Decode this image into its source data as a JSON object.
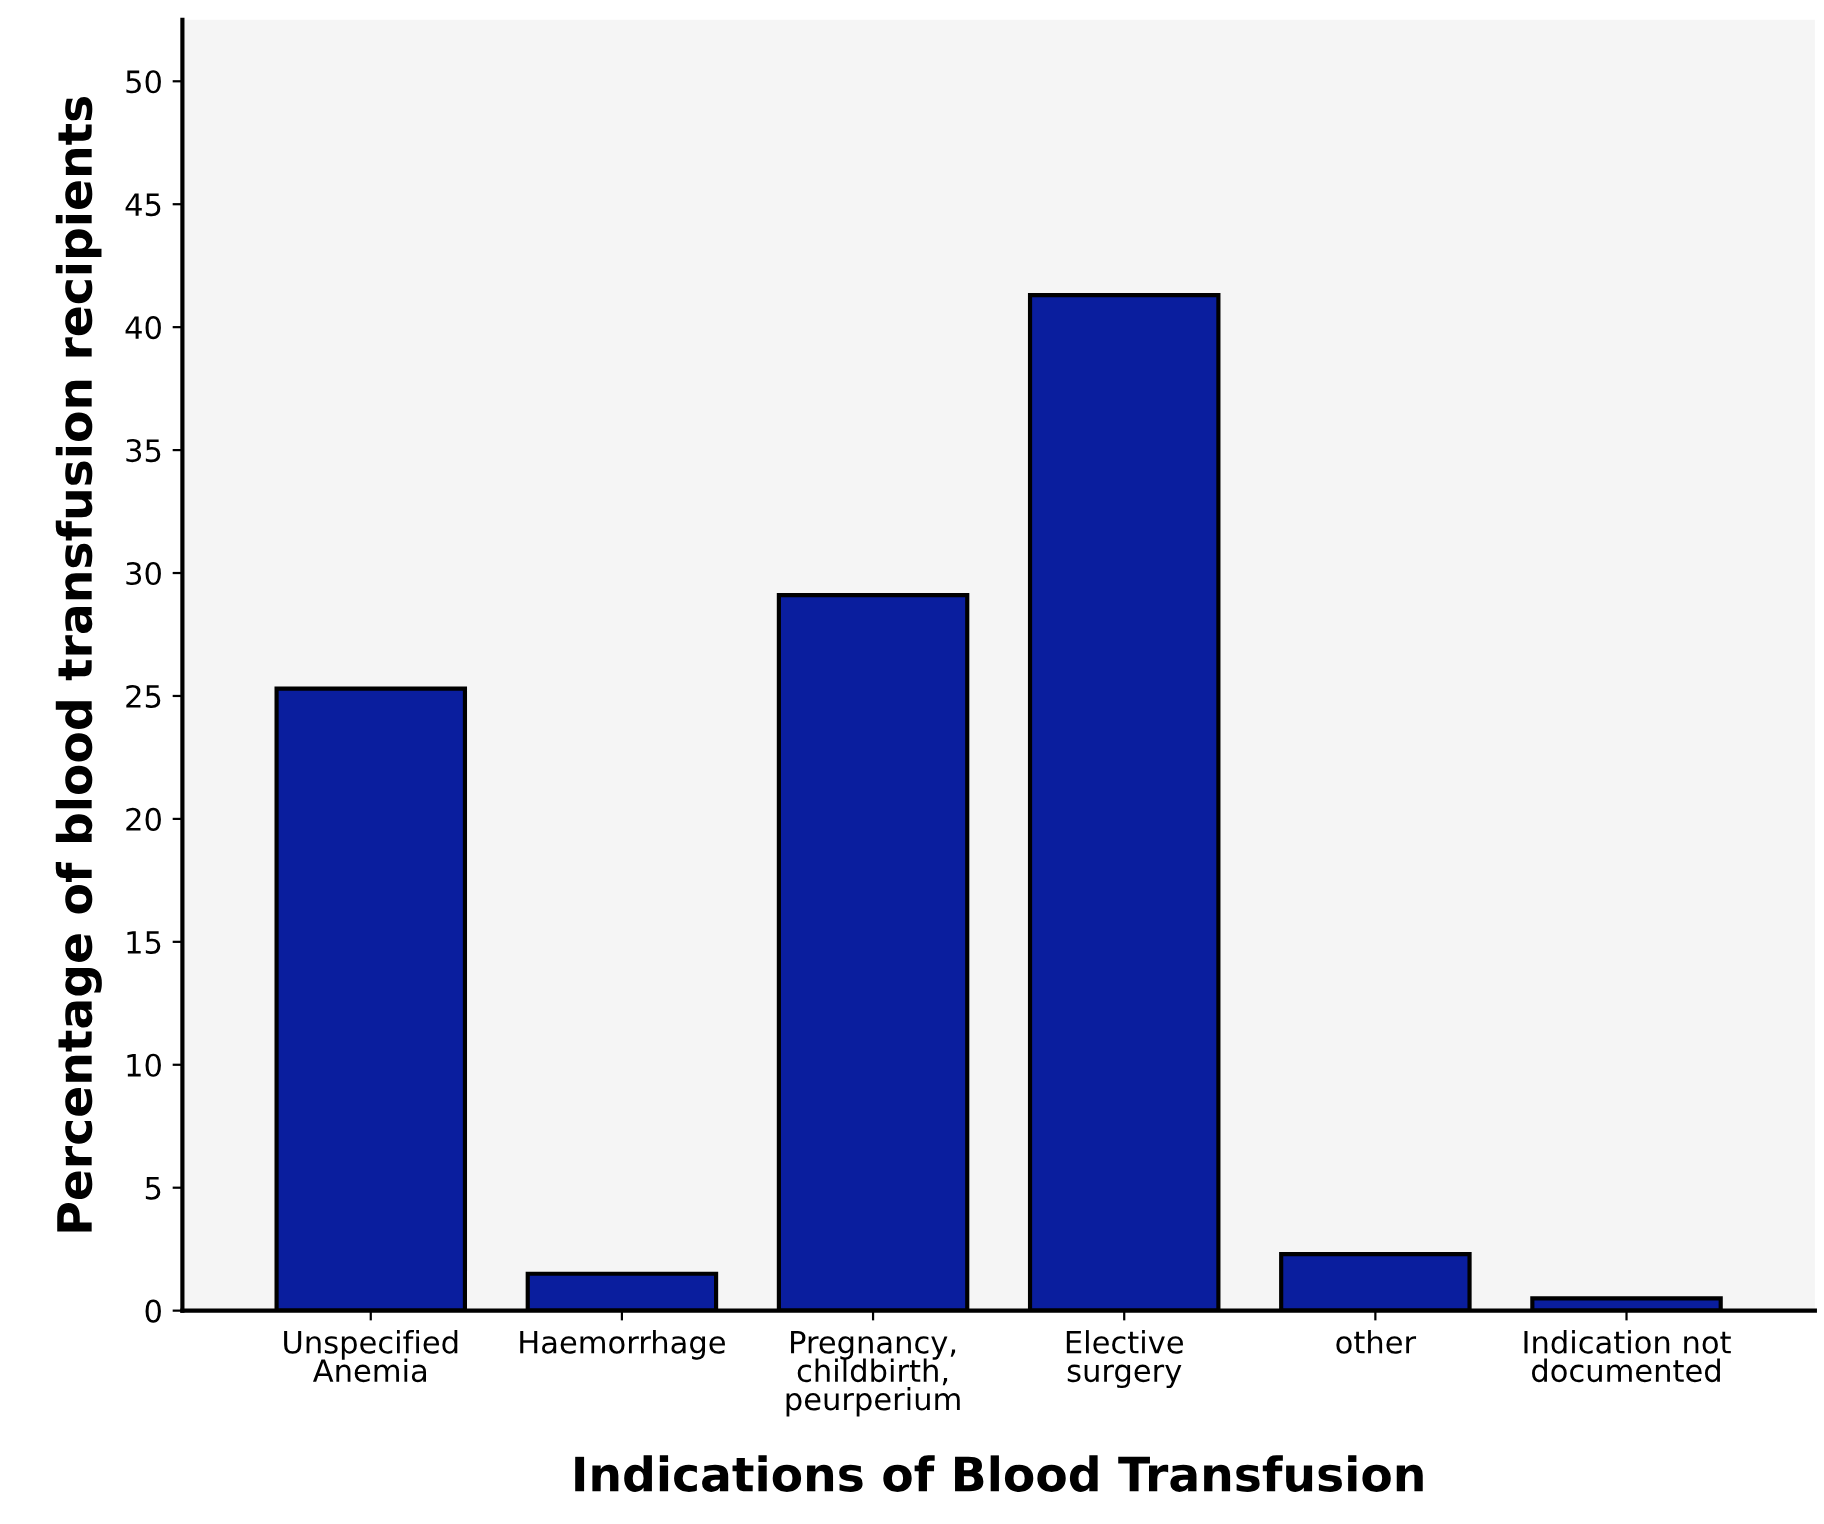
{
  "chart_data": {
    "type": "bar",
    "xlabel": "Indications of Blood Transfusion",
    "ylabel": "Percentage of blood transfusion recipients",
    "categories": [
      "Unspecified\nAnemia",
      "Haemorrhage",
      "Pregnancy,\nchildbirth,\npeurperium",
      "Elective\nsurgery",
      "other",
      "Indication not\ndocumented"
    ],
    "values": [
      25.3,
      1.5,
      29.1,
      41.3,
      2.3,
      0.5
    ],
    "color": "#0a1e9e",
    "ylim": [
      0,
      52.5
    ],
    "yticks": [
      0,
      5,
      10,
      15,
      20,
      25,
      30,
      35,
      40,
      45,
      50
    ],
    "grid": false
  }
}
